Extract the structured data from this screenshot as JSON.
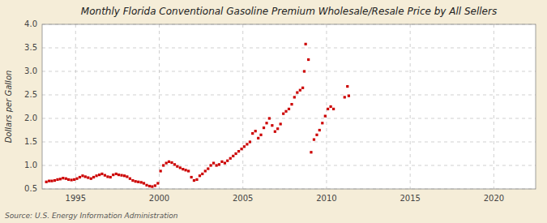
{
  "chart_data": {
    "type": "scatter",
    "title": "Monthly Florida Conventional Gasoline Premium Wholesale/Resale Price by All Sellers",
    "ylabel": "Dollars per Gallon",
    "source": "Source: U.S. Energy Information Administration",
    "color": "#cc0000",
    "marker": "square",
    "grid": true,
    "xlim": [
      1993.0,
      2022.5
    ],
    "ylim": [
      0.5,
      4.0
    ],
    "xticks": [
      1995,
      2000,
      2005,
      2010,
      2015,
      2020
    ],
    "yticks": [
      0.5,
      {
        "value": 1.0,
        "label": "1.0"
      },
      1.5,
      {
        "value": 2.0,
        "label": "2.0"
      },
      2.5,
      {
        "value": 3.0,
        "label": "3.0"
      },
      3.5,
      {
        "value": 4.0,
        "label": "4.0"
      }
    ],
    "x": [
      1993.25,
      1993.42,
      1993.58,
      1993.75,
      1993.92,
      1994.08,
      1994.25,
      1994.42,
      1994.58,
      1994.75,
      1994.92,
      1995.08,
      1995.25,
      1995.42,
      1995.58,
      1995.75,
      1995.92,
      1996.08,
      1996.25,
      1996.42,
      1996.58,
      1996.75,
      1996.92,
      1997.08,
      1997.25,
      1997.42,
      1997.58,
      1997.75,
      1997.92,
      1998.08,
      1998.25,
      1998.42,
      1998.58,
      1998.75,
      1998.92,
      1999.08,
      1999.25,
      1999.42,
      1999.58,
      1999.75,
      1999.92,
      2000.08,
      2000.25,
      2000.42,
      2000.58,
      2000.75,
      2000.92,
      2001.08,
      2001.25,
      2001.42,
      2001.58,
      2001.75,
      2001.92,
      2002.08,
      2002.25,
      2002.42,
      2002.58,
      2002.75,
      2002.92,
      2003.08,
      2003.25,
      2003.42,
      2003.58,
      2003.75,
      2003.92,
      2004.08,
      2004.25,
      2004.42,
      2004.58,
      2004.75,
      2004.92,
      2005.08,
      2005.25,
      2005.42,
      2005.58,
      2005.75,
      2005.92,
      2006.08,
      2006.25,
      2006.42,
      2006.58,
      2006.75,
      2006.92,
      2007.08,
      2007.25,
      2007.42,
      2007.58,
      2007.75,
      2007.92,
      2008.08,
      2008.25,
      2008.42,
      2008.58,
      2008.67,
      2008.75,
      2008.92,
      2009.08,
      2009.25,
      2009.42,
      2009.58,
      2009.75,
      2009.92,
      2010.08,
      2010.25,
      2010.42,
      2011.08,
      2011.25,
      2011.33
    ],
    "values": [
      0.65,
      0.67,
      0.67,
      0.68,
      0.7,
      0.71,
      0.73,
      0.72,
      0.7,
      0.69,
      0.7,
      0.72,
      0.75,
      0.78,
      0.76,
      0.74,
      0.72,
      0.75,
      0.78,
      0.8,
      0.82,
      0.79,
      0.76,
      0.75,
      0.8,
      0.82,
      0.8,
      0.79,
      0.78,
      0.76,
      0.72,
      0.68,
      0.66,
      0.65,
      0.64,
      0.62,
      0.58,
      0.56,
      0.55,
      0.57,
      0.62,
      0.88,
      1.0,
      1.05,
      1.08,
      1.06,
      1.02,
      0.98,
      0.95,
      0.92,
      0.9,
      0.88,
      0.75,
      0.68,
      0.7,
      0.78,
      0.82,
      0.88,
      0.93,
      1.0,
      1.05,
      1.0,
      1.02,
      1.08,
      1.05,
      1.1,
      1.15,
      1.2,
      1.25,
      1.3,
      1.35,
      1.4,
      1.45,
      1.5,
      1.68,
      1.73,
      1.58,
      1.65,
      1.8,
      1.9,
      2.0,
      1.85,
      1.72,
      1.78,
      1.88,
      2.1,
      2.15,
      2.2,
      2.3,
      2.45,
      2.55,
      2.6,
      2.65,
      3.0,
      3.58,
      3.25,
      1.28,
      1.55,
      1.65,
      1.75,
      1.9,
      2.05,
      2.2,
      2.25,
      2.2,
      2.45,
      2.68,
      2.48
    ]
  }
}
